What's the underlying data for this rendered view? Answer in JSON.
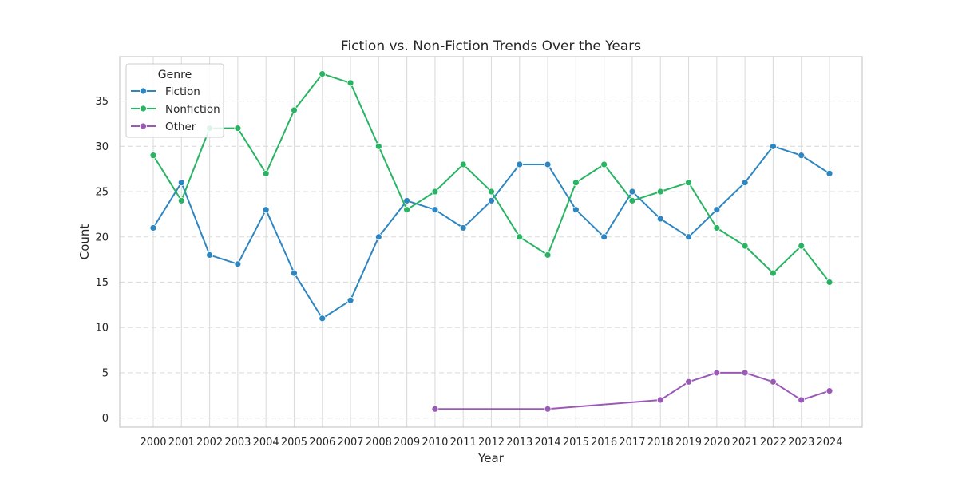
{
  "chart_data": {
    "type": "line",
    "title": "Fiction vs. Non-Fiction Trends Over the Years",
    "xlabel": "Year",
    "ylabel": "Count",
    "x": [
      "2000",
      "2001",
      "2002",
      "2003",
      "2004",
      "2005",
      "2006",
      "2007",
      "2008",
      "2009",
      "2010",
      "2011",
      "2012",
      "2013",
      "2014",
      "2015",
      "2016",
      "2017",
      "2018",
      "2019",
      "2020",
      "2021",
      "2022",
      "2023",
      "2024"
    ],
    "ylim": [
      -1,
      39.9
    ],
    "yticks": [
      0,
      5,
      10,
      15,
      20,
      25,
      30,
      35
    ],
    "grid": true,
    "legend": {
      "title": "Genre",
      "placement": "top-left"
    },
    "series": [
      {
        "name": "Fiction",
        "color": "#2e86c1",
        "values": [
          21,
          26,
          18,
          17,
          23,
          16,
          11,
          13,
          20,
          24,
          23,
          21,
          24,
          28,
          28,
          23,
          20,
          25,
          22,
          20,
          23,
          26,
          30,
          29,
          27
        ]
      },
      {
        "name": "Nonfiction",
        "color": "#28b463",
        "values": [
          29,
          24,
          32,
          32,
          27,
          34,
          38,
          37,
          30,
          23,
          25,
          28,
          25,
          20,
          18,
          26,
          28,
          24,
          25,
          26,
          21,
          19,
          16,
          19,
          15
        ]
      },
      {
        "name": "Other",
        "color": "#9b59b6",
        "values": [
          null,
          null,
          null,
          null,
          null,
          null,
          null,
          null,
          null,
          null,
          1,
          null,
          null,
          null,
          1,
          null,
          null,
          null,
          2,
          4,
          5,
          5,
          4,
          2,
          3
        ]
      }
    ]
  }
}
